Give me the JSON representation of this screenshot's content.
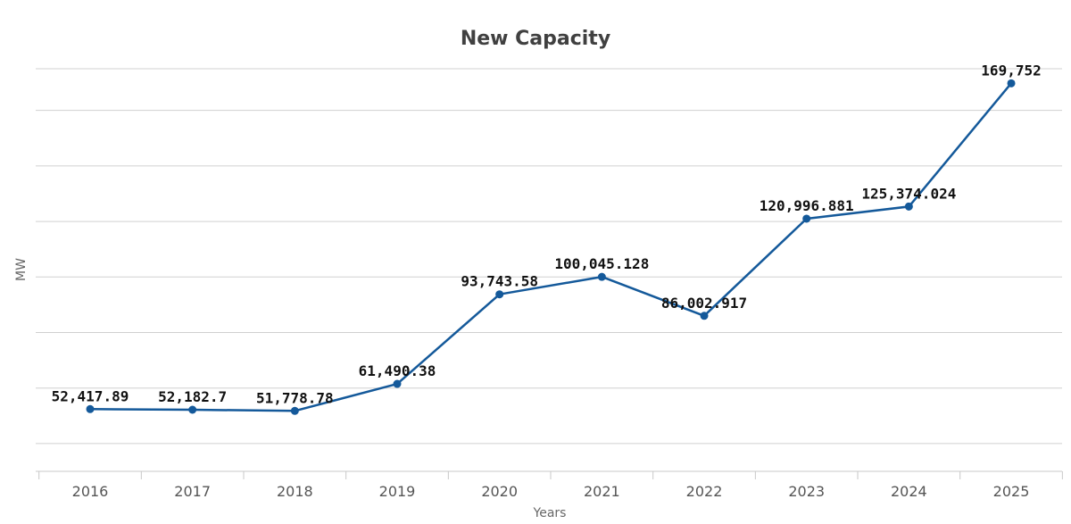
{
  "chart_data": {
    "type": "line",
    "title": "New Capacity",
    "xlabel": "Years",
    "ylabel": "MW",
    "categories": [
      "2016",
      "2017",
      "2018",
      "2019",
      "2020",
      "2021",
      "2022",
      "2023",
      "2024",
      "2025"
    ],
    "series": [
      {
        "values": [
          52417.89,
          52182.7,
          51778.78,
          61490.38,
          93743.58,
          100045.128,
          86002.917,
          120996.881,
          125374.024,
          169752
        ],
        "labels": [
          "52,417.89",
          "52,182.7",
          "51,778.78",
          "61,490.38",
          "93,743.58",
          "100,045.128",
          "86,002.917",
          "120,996.881",
          "125,374.024",
          "169,752"
        ],
        "color": "#14599a"
      }
    ],
    "ylim": [
      30000,
      175000
    ],
    "y_gridlines": [
      40000,
      60000,
      80000,
      100000,
      120000,
      140000,
      160000,
      175000
    ],
    "y_tick_labels_visible": false,
    "grid": "horizontal",
    "legend": "none"
  }
}
